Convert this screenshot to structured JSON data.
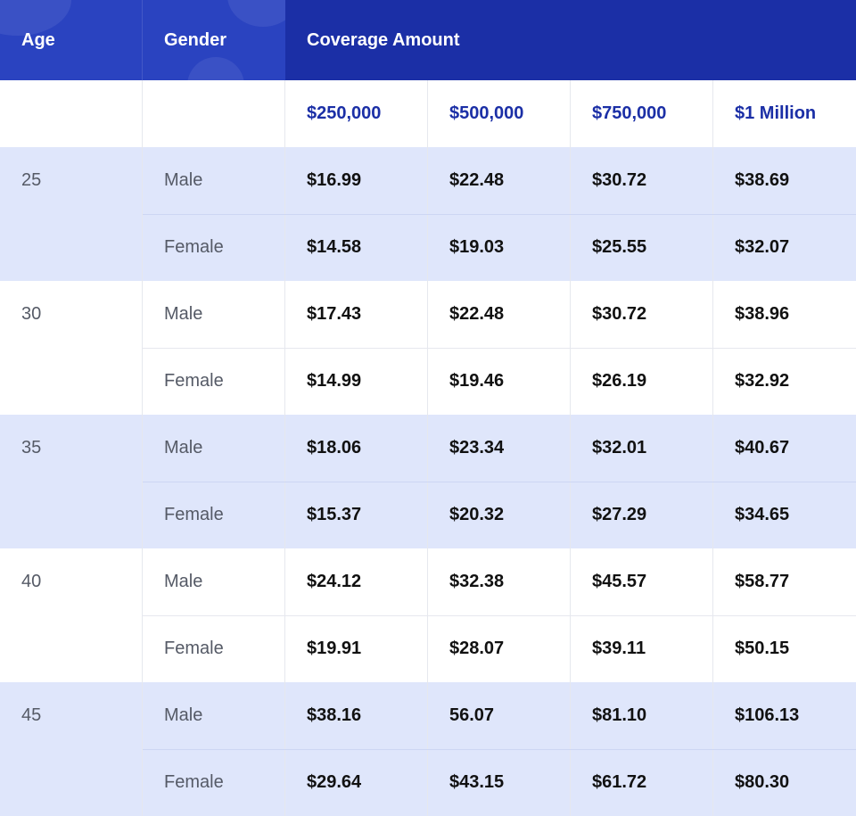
{
  "header": {
    "age_label": "Age",
    "gender_label": "Gender",
    "coverage_label": "Coverage Amount"
  },
  "coverage_amounts": [
    "$250,000",
    "$500,000",
    "$750,000",
    "$1 Million"
  ],
  "groups": [
    {
      "age": "25",
      "rows": [
        {
          "gender": "Male",
          "prices": [
            "$16.99",
            "$22.48",
            "$30.72",
            "$38.69"
          ]
        },
        {
          "gender": "Female",
          "prices": [
            "$14.58",
            "$19.03",
            "$25.55",
            "$32.07"
          ]
        }
      ]
    },
    {
      "age": "30",
      "rows": [
        {
          "gender": "Male",
          "prices": [
            "$17.43",
            "$22.48",
            "$30.72",
            "$38.96"
          ]
        },
        {
          "gender": "Female",
          "prices": [
            "$14.99",
            "$19.46",
            "$26.19",
            "$32.92"
          ]
        }
      ]
    },
    {
      "age": "35",
      "rows": [
        {
          "gender": "Male",
          "prices": [
            "$18.06",
            "$23.34",
            "$32.01",
            "$40.67"
          ]
        },
        {
          "gender": "Female",
          "prices": [
            "$15.37",
            "$20.32",
            "$27.29",
            "$34.65"
          ]
        }
      ]
    },
    {
      "age": "40",
      "rows": [
        {
          "gender": "Male",
          "prices": [
            "$24.12",
            "$32.38",
            "$45.57",
            "$58.77"
          ]
        },
        {
          "gender": "Female",
          "prices": [
            "$19.91",
            "$28.07",
            "$39.11",
            "$50.15"
          ]
        }
      ]
    },
    {
      "age": "45",
      "rows": [
        {
          "gender": "Male",
          "prices": [
            "$38.16",
            "56.07",
            "$81.10",
            "$106.13"
          ]
        },
        {
          "gender": "Female",
          "prices": [
            "$29.64",
            "$43.15",
            "$61.72",
            "$80.30"
          ]
        }
      ]
    }
  ],
  "colors": {
    "header_bg": "#1b2fa6",
    "header_deco": "#2a43c0",
    "accent_text": "#1b2fa6",
    "shaded_row": "#dfe6fb"
  }
}
